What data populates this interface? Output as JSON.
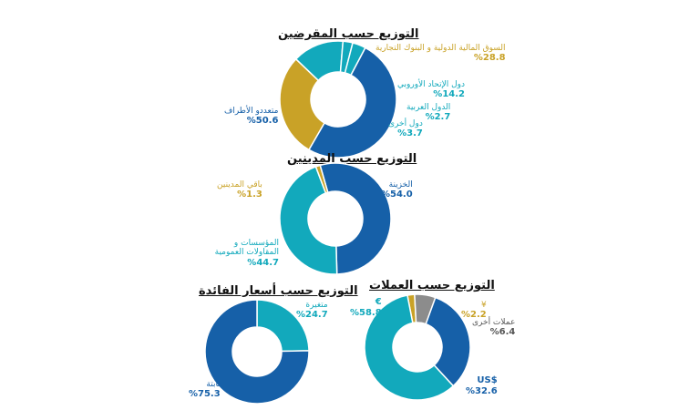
{
  "colors": {
    "dark_blue": "#1660A8",
    "teal": "#12A9BC",
    "gold": "#C9A227",
    "gray": "#8C8C8C"
  },
  "chart_data": [
    {
      "type": "pie",
      "title": "التوزيع حسب المقرضين",
      "slices": [
        {
          "name": "السوق المالية الدولية و البنوك التجارية",
          "label": "%28.8",
          "value": 28.8,
          "color": "#C9A227"
        },
        {
          "name": "دول الإتحاد الأوروبي",
          "label": "%14.2",
          "value": 14.2,
          "color": "#12A9BC"
        },
        {
          "name": "الدول العربية",
          "label": "%2.7",
          "value": 2.7,
          "color": "#12A9BC"
        },
        {
          "name": "دول أخرى",
          "label": "%3.7",
          "value": 3.7,
          "color": "#12A9BC"
        },
        {
          "name": "متعددو الأطراف",
          "label": "%50.6",
          "value": 50.6,
          "color": "#1660A8"
        }
      ]
    },
    {
      "type": "pie",
      "title": "التوزيع حسب المدينين",
      "slices": [
        {
          "name": "الخزينة",
          "label": "%54.0",
          "value": 54.0,
          "color": "#1660A8"
        },
        {
          "name": "المؤسسات و المقاولات العمومية",
          "label": "%44.7",
          "value": 44.7,
          "color": "#12A9BC"
        },
        {
          "name": "باقي المدينين",
          "label": "%1.3",
          "value": 1.3,
          "color": "#C9A227"
        }
      ]
    },
    {
      "type": "pie",
      "title": "التوزيع حسب العملات",
      "slices": [
        {
          "name": "¥",
          "label": "%2.2",
          "value": 2.2,
          "color": "#C9A227"
        },
        {
          "name": "عملات أخرى",
          "label": "%6.4",
          "value": 6.4,
          "color": "#8C8C8C"
        },
        {
          "name": "$US",
          "label": "%32.6",
          "value": 32.6,
          "color": "#1660A8"
        },
        {
          "name": "€",
          "label": "%58.8",
          "value": 58.8,
          "color": "#12A9BC"
        }
      ]
    },
    {
      "type": "pie",
      "title": "التوزيع حسب أسعار الفائدة",
      "slices": [
        {
          "name": "متغيرة",
          "label": "%24.7",
          "value": 24.7,
          "color": "#12A9BC"
        },
        {
          "name": "ثابتة",
          "label": "%75.3",
          "value": 75.3,
          "color": "#1660A8"
        }
      ]
    }
  ]
}
